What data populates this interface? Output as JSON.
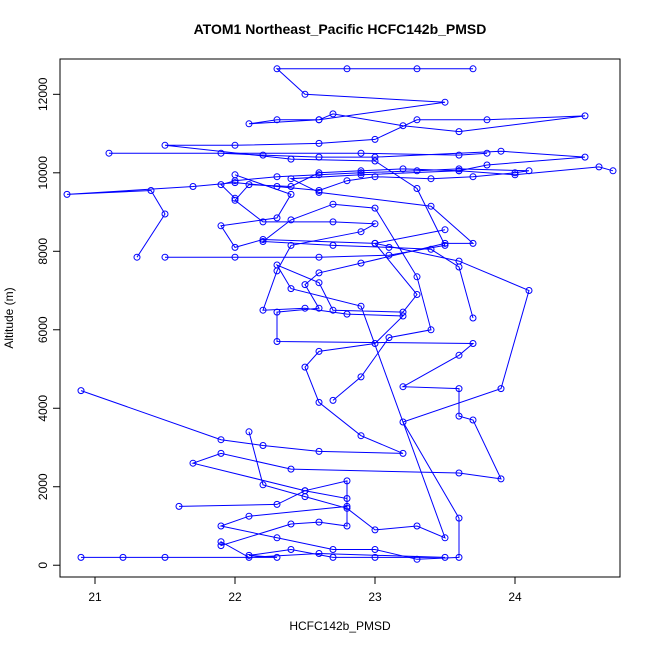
{
  "chart_data": {
    "type": "line",
    "title": "ATOM1 Northeast_Pacific HCFC142b_PMSD",
    "xlabel": "HCFC142b_PMSD",
    "ylabel": "Altitude (m)",
    "xlim": [
      20.75,
      24.75
    ],
    "ylim": [
      -300,
      12900
    ],
    "xticks": [
      21,
      22,
      23,
      24
    ],
    "yticks": [
      0,
      2000,
      4000,
      6000,
      8000,
      10000,
      12000
    ],
    "grid": false,
    "series_color": "#0000ff",
    "series": [
      {
        "values": [
          [
            20.9,
            200
          ],
          [
            21.2,
            200
          ],
          [
            21.5,
            200
          ],
          [
            22.3,
            200
          ],
          [
            22.1,
            250
          ],
          [
            22.4,
            400
          ],
          [
            22.7,
            200
          ],
          [
            23.0,
            200
          ],
          [
            23.5,
            200
          ],
          [
            22.6,
            300
          ],
          [
            22.1,
            200
          ],
          [
            21.9,
            600
          ],
          [
            21.9,
            500
          ],
          [
            22.4,
            1050
          ],
          [
            22.6,
            1100
          ],
          [
            22.8,
            1000
          ],
          [
            22.8,
            1700
          ],
          [
            22.5,
            1900
          ],
          [
            21.7,
            2600
          ],
          [
            21.9,
            2850
          ],
          [
            22.4,
            2450
          ],
          [
            23.6,
            2350
          ],
          [
            23.9,
            2200
          ],
          [
            23.7,
            3700
          ],
          [
            23.6,
            3800
          ],
          [
            23.6,
            4500
          ],
          [
            23.2,
            4550
          ],
          [
            23.6,
            5350
          ],
          [
            23.7,
            5650
          ],
          [
            22.3,
            5700
          ],
          [
            22.3,
            6450
          ],
          [
            22.6,
            6550
          ],
          [
            22.5,
            7150
          ],
          [
            22.6,
            7450
          ],
          [
            22.9,
            7700
          ],
          [
            23.5,
            8200
          ],
          [
            23.7,
            8200
          ],
          [
            23.4,
            9150
          ],
          [
            22.6,
            9500
          ],
          [
            22.4,
            9850
          ],
          [
            22.9,
            9950
          ],
          [
            23.6,
            10050
          ],
          [
            24.0,
            9950
          ],
          [
            24.6,
            10150
          ],
          [
            24.7,
            10050
          ]
        ]
      },
      {
        "values": [
          [
            20.9,
            4450
          ],
          [
            21.9,
            3200
          ],
          [
            22.2,
            3050
          ],
          [
            22.6,
            2900
          ],
          [
            23.2,
            2850
          ],
          [
            22.9,
            3300
          ],
          [
            22.6,
            4150
          ],
          [
            22.5,
            5050
          ],
          [
            22.6,
            5450
          ],
          [
            23.0,
            5650
          ],
          [
            23.2,
            6350
          ],
          [
            22.8,
            6400
          ],
          [
            22.5,
            6550
          ],
          [
            22.2,
            6500
          ],
          [
            22.3,
            7500
          ],
          [
            22.4,
            8150
          ],
          [
            22.9,
            8500
          ],
          [
            23.0,
            8700
          ],
          [
            22.7,
            8750
          ],
          [
            22.2,
            8750
          ],
          [
            22.0,
            9300
          ],
          [
            22.1,
            9700
          ],
          [
            22.4,
            9650
          ],
          [
            22.6,
            10000
          ],
          [
            22.9,
            10050
          ],
          [
            23.2,
            10100
          ],
          [
            23.6,
            10050
          ],
          [
            23.8,
            10200
          ],
          [
            24.5,
            10400
          ],
          [
            23.9,
            10550
          ],
          [
            23.0,
            10400
          ],
          [
            22.6,
            10400
          ],
          [
            22.2,
            10450
          ],
          [
            21.9,
            10500
          ],
          [
            21.1,
            10500
          ],
          [
            22.9,
            10500
          ],
          [
            23.6,
            10450
          ],
          [
            23.8,
            10500
          ]
        ]
      },
      {
        "values": [
          [
            21.3,
            7850
          ],
          [
            21.5,
            8950
          ],
          [
            21.4,
            9550
          ],
          [
            20.8,
            9450
          ],
          [
            21.7,
            9650
          ],
          [
            22.0,
            9750
          ],
          [
            22.3,
            9650
          ],
          [
            22.6,
            9550
          ],
          [
            22.8,
            9800
          ],
          [
            23.0,
            9900
          ],
          [
            23.4,
            9850
          ],
          [
            23.7,
            9900
          ],
          [
            24.0,
            10000
          ],
          [
            24.1,
            10050
          ],
          [
            23.6,
            10100
          ],
          [
            23.3,
            10050
          ],
          [
            22.9,
            10000
          ],
          [
            22.6,
            9950
          ],
          [
            22.3,
            9900
          ],
          [
            22.0,
            9800
          ],
          [
            21.9,
            9700
          ],
          [
            22.0,
            9350
          ]
        ]
      },
      {
        "values": [
          [
            21.5,
            7850
          ],
          [
            22.0,
            7850
          ],
          [
            22.6,
            7850
          ],
          [
            23.1,
            7900
          ],
          [
            23.5,
            8150
          ],
          [
            23.3,
            9600
          ],
          [
            23.0,
            10300
          ],
          [
            22.4,
            10350
          ],
          [
            21.5,
            10700
          ],
          [
            22.0,
            10700
          ],
          [
            22.6,
            10750
          ],
          [
            23.0,
            10850
          ],
          [
            23.3,
            11350
          ],
          [
            23.8,
            11350
          ],
          [
            24.5,
            11450
          ],
          [
            23.6,
            11050
          ],
          [
            23.2,
            11200
          ],
          [
            22.7,
            11500
          ],
          [
            22.6,
            11350
          ],
          [
            22.1,
            11250
          ],
          [
            22.3,
            11350
          ],
          [
            22.6,
            11350
          ],
          [
            23.5,
            11800
          ],
          [
            22.5,
            12000
          ],
          [
            22.3,
            12650
          ],
          [
            22.8,
            12650
          ],
          [
            23.3,
            12650
          ],
          [
            23.7,
            12650
          ]
        ]
      },
      {
        "values": [
          [
            21.6,
            1500
          ],
          [
            22.3,
            1550
          ],
          [
            22.5,
            1900
          ],
          [
            22.8,
            2150
          ],
          [
            22.8,
            1500
          ],
          [
            22.1,
            1250
          ],
          [
            21.9,
            1000
          ],
          [
            22.3,
            700
          ],
          [
            22.7,
            400
          ],
          [
            23.0,
            400
          ],
          [
            23.3,
            150
          ],
          [
            23.6,
            200
          ],
          [
            23.6,
            1200
          ],
          [
            23.2,
            3650
          ],
          [
            23.9,
            4500
          ],
          [
            24.1,
            7000
          ],
          [
            23.6,
            7750
          ],
          [
            23.0,
            8200
          ],
          [
            22.2,
            8300
          ],
          [
            22.0,
            8100
          ],
          [
            21.9,
            8650
          ],
          [
            22.3,
            8850
          ],
          [
            22.4,
            9450
          ],
          [
            22.0,
            9950
          ]
        ]
      },
      {
        "values": [
          [
            22.1,
            3400
          ],
          [
            22.2,
            2050
          ],
          [
            22.5,
            1750
          ],
          [
            22.8,
            1450
          ],
          [
            23.0,
            900
          ],
          [
            23.3,
            1000
          ],
          [
            23.5,
            700
          ],
          [
            22.9,
            6600
          ],
          [
            22.4,
            7050
          ],
          [
            22.3,
            7650
          ],
          [
            22.6,
            7200
          ],
          [
            22.7,
            6500
          ],
          [
            23.2,
            6450
          ],
          [
            23.3,
            6900
          ],
          [
            23.0,
            8200
          ],
          [
            23.5,
            8550
          ]
        ]
      },
      {
        "values": [
          [
            22.7,
            4200
          ],
          [
            22.9,
            4800
          ],
          [
            23.1,
            5800
          ],
          [
            23.4,
            6000
          ],
          [
            23.3,
            7350
          ],
          [
            23.0,
            9100
          ],
          [
            22.7,
            9200
          ],
          [
            22.4,
            8800
          ],
          [
            22.2,
            8250
          ],
          [
            22.7,
            8150
          ],
          [
            23.1,
            8100
          ],
          [
            23.4,
            8050
          ],
          [
            23.6,
            7600
          ],
          [
            23.7,
            6300
          ]
        ]
      }
    ]
  }
}
